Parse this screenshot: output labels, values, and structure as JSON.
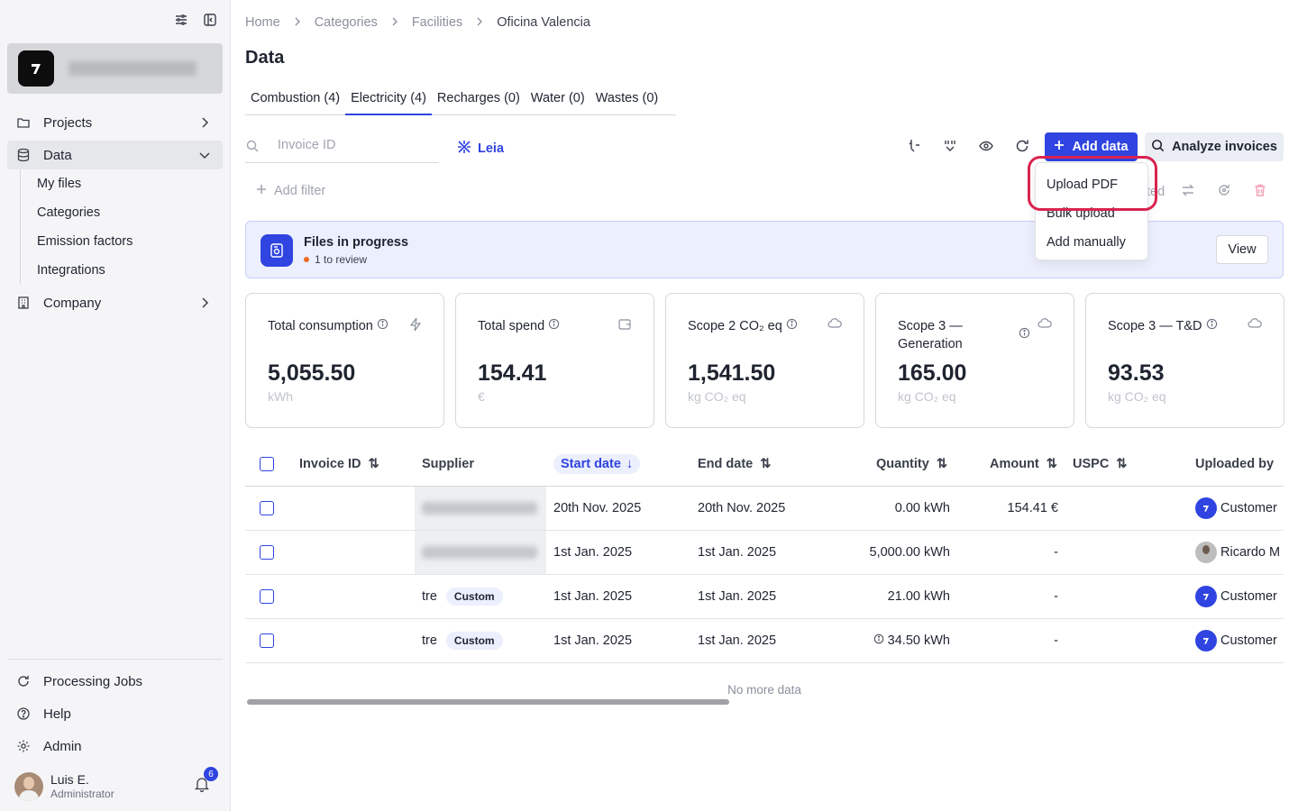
{
  "sidebar": {
    "nav": {
      "projects": "Projects",
      "data": "Data",
      "company": "Company"
    },
    "data_sub": [
      "My files",
      "Categories",
      "Emission factors",
      "Integrations"
    ],
    "bottom": {
      "processing": "Processing Jobs",
      "help": "Help",
      "admin": "Admin"
    },
    "user": {
      "name": "Luis E.",
      "role": "Administrator",
      "notifications": "6"
    }
  },
  "breadcrumb": [
    "Home",
    "Categories",
    "Facilities",
    "Oficina Valencia"
  ],
  "page_title": "Data",
  "tabs": [
    "Combustion (4)",
    "Electricity (4)",
    "Recharges (0)",
    "Water (0)",
    "Wastes (0)"
  ],
  "search": {
    "placeholder": "Invoice ID"
  },
  "leia_label": "Leia",
  "toolbar": {
    "add_data": "Add data",
    "analyze": "Analyze invoices"
  },
  "add_filter": "Add filter",
  "partial_text": "ted",
  "dropdown": [
    "Upload PDF",
    "Bulk upload",
    "Add manually"
  ],
  "banner": {
    "title": "Files in progress",
    "subtitle": "1 to review",
    "view": "View"
  },
  "cards": [
    {
      "title": "Total consumption",
      "value": "5,055.50",
      "unit": "kWh"
    },
    {
      "title": "Total spend",
      "value": "154.41",
      "unit": "€"
    },
    {
      "title": "Scope 2 CO₂ eq",
      "value": "1,541.50",
      "unit": "kg CO₂ eq"
    },
    {
      "title": "Scope 3 — Generation",
      "value": "165.00",
      "unit": "kg CO₂ eq"
    },
    {
      "title": "Scope 3 — T&D",
      "value": "93.53",
      "unit": "kg CO₂ eq"
    }
  ],
  "table": {
    "headers": [
      "Invoice ID",
      "Supplier",
      "Start date",
      "End date",
      "Quantity",
      "Amount",
      "USPC",
      "Uploaded by"
    ],
    "rows": [
      {
        "supplier": "",
        "tag": "",
        "start": "20th Nov. 2025",
        "end": "20th Nov. 2025",
        "quantity": "0.00 kWh",
        "amount": "154.41 €",
        "uploader": "Customer"
      },
      {
        "supplier": "",
        "tag": "",
        "start": "1st Jan. 2025",
        "end": "1st Jan. 2025",
        "quantity": "5,000.00 kWh",
        "amount": "-",
        "uploader": "Ricardo M"
      },
      {
        "supplier": "tre",
        "tag": "Custom",
        "start": "1st Jan. 2025",
        "end": "1st Jan. 2025",
        "quantity": "21.00 kWh",
        "amount": "-",
        "uploader": "Customer"
      },
      {
        "supplier": "tre",
        "tag": "Custom",
        "start": "1st Jan. 2025",
        "end": "1st Jan. 2025",
        "quantity": "34.50 kWh",
        "amount": "-",
        "uploader": "Customer"
      }
    ],
    "footer": "No more data"
  },
  "colors": {
    "accent": "#2f44e0",
    "highlight": "#d9234f",
    "banner_bg": "#eceffd"
  }
}
